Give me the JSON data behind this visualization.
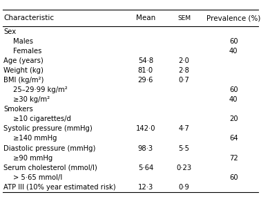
{
  "header": [
    "Characteristic",
    "Mean",
    "SEM",
    "Prevalence (%)"
  ],
  "rows": [
    {
      "label": "Sex",
      "indent": 0,
      "mean": "",
      "sem": "",
      "prev": ""
    },
    {
      "label": "Males",
      "indent": 1,
      "mean": "",
      "sem": "",
      "prev": "60"
    },
    {
      "label": "Females",
      "indent": 1,
      "mean": "",
      "sem": "",
      "prev": "40"
    },
    {
      "label": "Age (years)",
      "indent": 0,
      "mean": "54·8",
      "sem": "2·0",
      "prev": ""
    },
    {
      "label": "Weight (kg)",
      "indent": 0,
      "mean": "81·0",
      "sem": "2·8",
      "prev": ""
    },
    {
      "label": "BMI (kg/m²)",
      "indent": 0,
      "mean": "29·6",
      "sem": "0·7",
      "prev": ""
    },
    {
      "label": "25–29·99 kg/m²",
      "indent": 1,
      "mean": "",
      "sem": "",
      "prev": "60"
    },
    {
      "label": "≥30 kg/m²",
      "indent": 1,
      "mean": "",
      "sem": "",
      "prev": "40"
    },
    {
      "label": "Smokers",
      "indent": 0,
      "mean": "",
      "sem": "",
      "prev": ""
    },
    {
      "label": "≥10 cigarettes/d",
      "indent": 1,
      "mean": "",
      "sem": "",
      "prev": "20"
    },
    {
      "label": "Systolic pressure (mmHg)",
      "indent": 0,
      "mean": "142·0",
      "sem": "4·7",
      "prev": ""
    },
    {
      "label": "≥140 mmHg",
      "indent": 1,
      "mean": "",
      "sem": "",
      "prev": "64"
    },
    {
      "label": "Diastolic pressure (mmHg)",
      "indent": 0,
      "mean": "98·3",
      "sem": "5·5",
      "prev": ""
    },
    {
      "label": "≥90 mmHg",
      "indent": 1,
      "mean": "",
      "sem": "",
      "prev": "72"
    },
    {
      "label": "Serum cholesterol (mmol/l)",
      "indent": 0,
      "mean": "5·64",
      "sem": "0·23",
      "prev": ""
    },
    {
      "label": "> 5·65 mmol/l",
      "indent": 1,
      "mean": "",
      "sem": "",
      "prev": "60"
    },
    {
      "label": "ATP III (10% year estimated risk)",
      "indent": 0,
      "mean": "12·3",
      "sem": "0·9",
      "prev": ""
    }
  ],
  "col_x": {
    "char": 0.013,
    "mean": 0.558,
    "sem": 0.705,
    "prev": 0.895
  },
  "bg_color": "#ffffff",
  "text_color": "#000000",
  "header_fontsize": 7.5,
  "body_fontsize": 7.2,
  "indent_size": 0.038
}
